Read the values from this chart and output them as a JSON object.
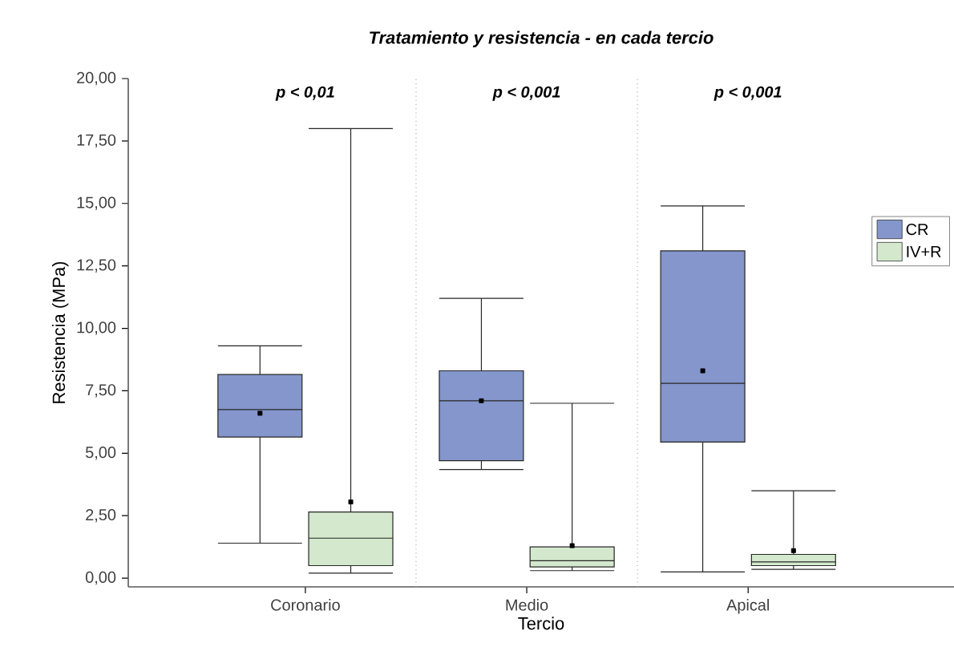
{
  "chart_data": {
    "type": "box",
    "title": "Tratamiento y resistencia - en cada tercio",
    "xlabel": "Tercio",
    "ylabel": "Resistencia (MPa)",
    "categories": [
      "Coronario",
      "Medio",
      "Apical"
    ],
    "series": [
      {
        "name": "CR",
        "color": "#8496cb",
        "boxes": [
          {
            "low": 1.4,
            "q1": 5.65,
            "median": 6.75,
            "q3": 8.15,
            "high": 9.3,
            "mean": 6.6
          },
          {
            "low": 4.35,
            "q1": 4.7,
            "median": 7.1,
            "q3": 8.3,
            "high": 11.2,
            "mean": 7.1
          },
          {
            "low": 0.25,
            "q1": 5.45,
            "median": 7.8,
            "q3": 13.1,
            "high": 14.9,
            "mean": 8.3
          }
        ]
      },
      {
        "name": "IV+R",
        "color": "#d3e8cc",
        "boxes": [
          {
            "low": 0.2,
            "q1": 0.5,
            "median": 1.6,
            "q3": 2.65,
            "high": 18.0,
            "mean": 3.05
          },
          {
            "low": 0.3,
            "q1": 0.45,
            "median": 0.7,
            "q3": 1.25,
            "high": 7.0,
            "mean": 1.3
          },
          {
            "low": 0.35,
            "q1": 0.5,
            "median": 0.65,
            "q3": 0.95,
            "high": 3.5,
            "mean": 1.1
          }
        ]
      }
    ],
    "ylim": [
      -0.35,
      20
    ],
    "yticks": [
      {
        "value": 0,
        "label": "0,00"
      },
      {
        "value": 2.5,
        "label": "2,50"
      },
      {
        "value": 5,
        "label": "5,00"
      },
      {
        "value": 7.5,
        "label": "7,50"
      },
      {
        "value": 10,
        "label": "10,00"
      },
      {
        "value": 12.5,
        "label": "12,50"
      },
      {
        "value": 15,
        "label": "15,00"
      },
      {
        "value": 17.5,
        "label": "17,50"
      },
      {
        "value": 20,
        "label": "20,00"
      }
    ],
    "annotations": [
      "p < 0,01",
      "p < 0,001",
      "p < 0,001"
    ],
    "legend": "right",
    "grid": false,
    "marker": "square"
  }
}
